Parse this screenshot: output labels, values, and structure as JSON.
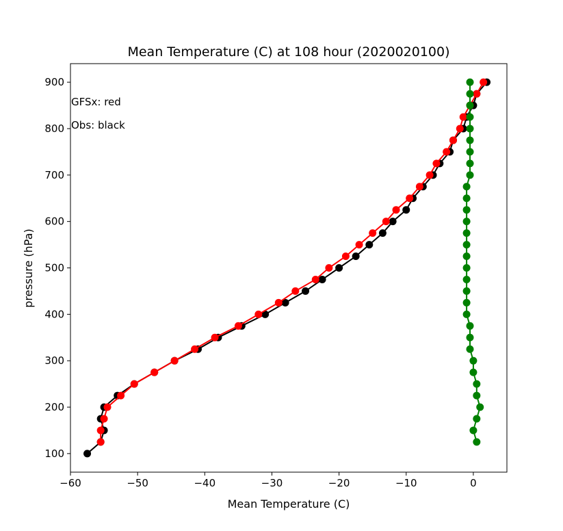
{
  "chart_data": {
    "type": "line",
    "title": "Mean Temperature (C) at 108 hour (2020020100)",
    "xlabel": "Mean Temperature (C)",
    "ylabel": "pressure (hPa)",
    "xlim": [
      -60,
      5
    ],
    "ylim": [
      60,
      940
    ],
    "x_ticks": [
      -60,
      -50,
      -40,
      -30,
      -20,
      -10,
      0
    ],
    "x_tick_labels": [
      "−60",
      "−50",
      "−40",
      "−30",
      "−20",
      "−10",
      "0"
    ],
    "y_ticks": [
      100,
      200,
      300,
      400,
      500,
      600,
      700,
      800,
      900
    ],
    "y_tick_labels": [
      "100",
      "200",
      "300",
      "400",
      "500",
      "600",
      "700",
      "800",
      "900"
    ],
    "grid": false,
    "annotations": [
      "GFSx: red",
      "Obs: black"
    ],
    "series": [
      {
        "color": "#000000",
        "points": [
          {
            "x": 2.0,
            "y": 900
          },
          {
            "x": 0.5,
            "y": 875
          },
          {
            "x": 0.0,
            "y": 850
          },
          {
            "x": -1.0,
            "y": 825
          },
          {
            "x": -1.5,
            "y": 800
          },
          {
            "x": -3.0,
            "y": 775
          },
          {
            "x": -3.5,
            "y": 750
          },
          {
            "x": -5.0,
            "y": 725
          },
          {
            "x": -6.0,
            "y": 700
          },
          {
            "x": -7.5,
            "y": 675
          },
          {
            "x": -9.0,
            "y": 650
          },
          {
            "x": -10.0,
            "y": 625
          },
          {
            "x": -12.0,
            "y": 600
          },
          {
            "x": -13.5,
            "y": 575
          },
          {
            "x": -15.5,
            "y": 550
          },
          {
            "x": -17.5,
            "y": 525
          },
          {
            "x": -20.0,
            "y": 500
          },
          {
            "x": -22.5,
            "y": 475
          },
          {
            "x": -25.0,
            "y": 450
          },
          {
            "x": -28.0,
            "y": 425
          },
          {
            "x": -31.0,
            "y": 400
          },
          {
            "x": -34.5,
            "y": 375
          },
          {
            "x": -38.0,
            "y": 350
          },
          {
            "x": -41.0,
            "y": 325
          },
          {
            "x": -44.5,
            "y": 300
          },
          {
            "x": -47.5,
            "y": 275
          },
          {
            "x": -50.5,
            "y": 250
          },
          {
            "x": -53.0,
            "y": 225
          },
          {
            "x": -55.0,
            "y": 200
          },
          {
            "x": -55.5,
            "y": 175
          },
          {
            "x": -55.0,
            "y": 150
          },
          {
            "x": -55.5,
            "y": 125
          },
          {
            "x": -57.5,
            "y": 100
          }
        ]
      },
      {
        "color": "#ff0000",
        "points": [
          {
            "x": 1.5,
            "y": 900
          },
          {
            "x": 0.5,
            "y": 875
          },
          {
            "x": -0.5,
            "y": 850
          },
          {
            "x": -1.5,
            "y": 825
          },
          {
            "x": -2.0,
            "y": 800
          },
          {
            "x": -3.0,
            "y": 775
          },
          {
            "x": -4.0,
            "y": 750
          },
          {
            "x": -5.5,
            "y": 725
          },
          {
            "x": -6.5,
            "y": 700
          },
          {
            "x": -8.0,
            "y": 675
          },
          {
            "x": -9.5,
            "y": 650
          },
          {
            "x": -11.5,
            "y": 625
          },
          {
            "x": -13.0,
            "y": 600
          },
          {
            "x": -15.0,
            "y": 575
          },
          {
            "x": -17.0,
            "y": 550
          },
          {
            "x": -19.0,
            "y": 525
          },
          {
            "x": -21.5,
            "y": 500
          },
          {
            "x": -23.5,
            "y": 475
          },
          {
            "x": -26.5,
            "y": 450
          },
          {
            "x": -29.0,
            "y": 425
          },
          {
            "x": -32.0,
            "y": 400
          },
          {
            "x": -35.0,
            "y": 375
          },
          {
            "x": -38.5,
            "y": 350
          },
          {
            "x": -41.5,
            "y": 325
          },
          {
            "x": -44.5,
            "y": 300
          },
          {
            "x": -47.5,
            "y": 275
          },
          {
            "x": -50.5,
            "y": 250
          },
          {
            "x": -52.5,
            "y": 225
          },
          {
            "x": -54.5,
            "y": 200
          },
          {
            "x": -55.0,
            "y": 175
          },
          {
            "x": -55.5,
            "y": 150
          },
          {
            "x": -55.5,
            "y": 125
          }
        ]
      },
      {
        "color": "#008000",
        "points": [
          {
            "x": -0.5,
            "y": 900
          },
          {
            "x": -0.5,
            "y": 875
          },
          {
            "x": -0.5,
            "y": 850
          },
          {
            "x": -0.5,
            "y": 825
          },
          {
            "x": -0.5,
            "y": 800
          },
          {
            "x": -0.5,
            "y": 775
          },
          {
            "x": -0.5,
            "y": 750
          },
          {
            "x": -0.5,
            "y": 725
          },
          {
            "x": -0.5,
            "y": 700
          },
          {
            "x": -1.0,
            "y": 675
          },
          {
            "x": -1.0,
            "y": 650
          },
          {
            "x": -1.0,
            "y": 625
          },
          {
            "x": -1.0,
            "y": 600
          },
          {
            "x": -1.0,
            "y": 575
          },
          {
            "x": -1.0,
            "y": 550
          },
          {
            "x": -1.0,
            "y": 525
          },
          {
            "x": -1.0,
            "y": 500
          },
          {
            "x": -1.0,
            "y": 475
          },
          {
            "x": -1.0,
            "y": 450
          },
          {
            "x": -1.0,
            "y": 425
          },
          {
            "x": -1.0,
            "y": 400
          },
          {
            "x": -0.5,
            "y": 375
          },
          {
            "x": -0.5,
            "y": 350
          },
          {
            "x": -0.5,
            "y": 325
          },
          {
            "x": 0.0,
            "y": 300
          },
          {
            "x": 0.0,
            "y": 275
          },
          {
            "x": 0.5,
            "y": 250
          },
          {
            "x": 0.5,
            "y": 225
          },
          {
            "x": 1.0,
            "y": 200
          },
          {
            "x": 0.5,
            "y": 175
          },
          {
            "x": 0.0,
            "y": 150
          },
          {
            "x": 0.5,
            "y": 125
          }
        ]
      }
    ]
  }
}
